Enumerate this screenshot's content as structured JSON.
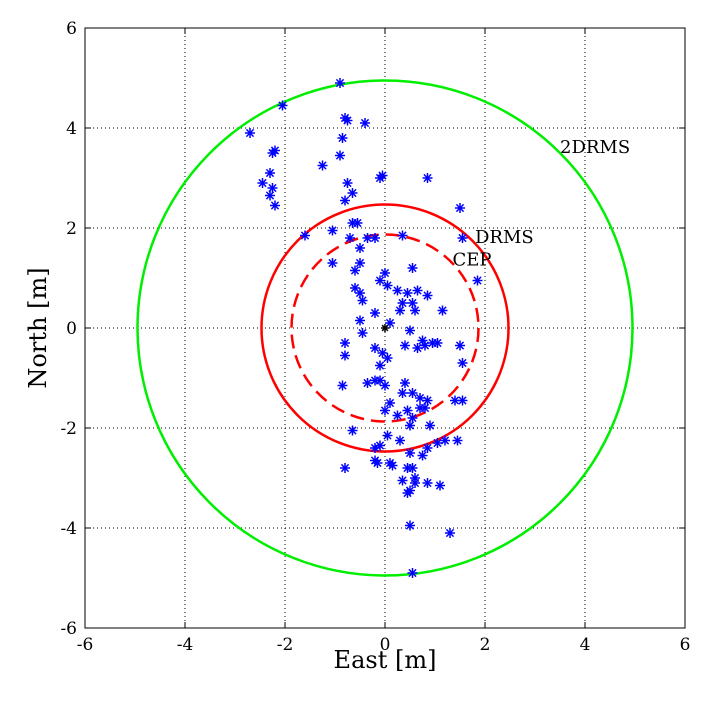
{
  "chart_data": {
    "type": "scatter",
    "title": "",
    "xlabel": "East [m]",
    "ylabel": "North [m]",
    "xlim": [
      -6,
      6
    ],
    "ylim": [
      -6,
      6
    ],
    "xticks": [
      -6,
      -4,
      -2,
      0,
      2,
      4,
      6
    ],
    "yticks": [
      -6,
      -4,
      -2,
      0,
      2,
      4,
      6
    ],
    "grid": true,
    "colors": {
      "points": "#0000ff",
      "drms": "#ff0000",
      "cep": "#ff0000",
      "twodrms": "#00ee00",
      "center": "#000000"
    },
    "circles": [
      {
        "name": "2DRMS",
        "radius": 4.95,
        "style": "solid",
        "color": "#00ee00"
      },
      {
        "name": "DRMS",
        "radius": 2.47,
        "style": "solid",
        "color": "#ff0000"
      },
      {
        "name": "CEP",
        "radius": 1.87,
        "style": "dashed",
        "color": "#ff0000"
      }
    ],
    "annotations": [
      {
        "text": "2DRMS",
        "x": 3.5,
        "y": 3.5
      },
      {
        "text": "DRMS",
        "x": 1.8,
        "y": 1.7
      },
      {
        "text": "CEP",
        "x": 1.35,
        "y": 1.25
      }
    ],
    "center": {
      "x": 0,
      "y": 0
    },
    "points": [
      [
        -0.9,
        4.9
      ],
      [
        -2.05,
        4.45
      ],
      [
        -2.7,
        3.9
      ],
      [
        -0.8,
        4.2
      ],
      [
        -0.75,
        4.15
      ],
      [
        -0.4,
        4.1
      ],
      [
        -0.85,
        3.8
      ],
      [
        -1.25,
        3.25
      ],
      [
        -0.9,
        3.45
      ],
      [
        -2.25,
        3.5
      ],
      [
        -2.2,
        3.55
      ],
      [
        -2.3,
        3.1
      ],
      [
        -2.45,
        2.9
      ],
      [
        -2.25,
        2.8
      ],
      [
        -2.3,
        2.65
      ],
      [
        -2.2,
        2.45
      ],
      [
        -0.75,
        2.9
      ],
      [
        -0.8,
        2.55
      ],
      [
        -0.1,
        3.0
      ],
      [
        -0.05,
        3.05
      ],
      [
        0.85,
        3.0
      ],
      [
        -0.65,
        2.7
      ],
      [
        -1.6,
        1.85
      ],
      [
        -1.05,
        1.95
      ],
      [
        -0.65,
        2.1
      ],
      [
        -0.55,
        2.1
      ],
      [
        -0.7,
        1.8
      ],
      [
        -0.35,
        1.8
      ],
      [
        -0.2,
        1.8
      ],
      [
        0.35,
        1.85
      ],
      [
        1.5,
        2.4
      ],
      [
        1.55,
        1.8
      ],
      [
        1.85,
        0.95
      ],
      [
        -1.05,
        1.3
      ],
      [
        -0.5,
        1.6
      ],
      [
        -0.6,
        1.15
      ],
      [
        -0.5,
        1.3
      ],
      [
        0.0,
        1.1
      ],
      [
        -0.1,
        0.95
      ],
      [
        0.55,
        1.2
      ],
      [
        0.05,
        0.85
      ],
      [
        -0.6,
        0.8
      ],
      [
        -0.5,
        0.7
      ],
      [
        -0.45,
        0.55
      ],
      [
        0.25,
        0.75
      ],
      [
        0.45,
        0.7
      ],
      [
        0.65,
        0.75
      ],
      [
        0.85,
        0.65
      ],
      [
        0.35,
        0.5
      ],
      [
        0.55,
        0.5
      ],
      [
        -0.2,
        0.3
      ],
      [
        0.3,
        0.35
      ],
      [
        0.6,
        0.35
      ],
      [
        1.15,
        0.35
      ],
      [
        -0.5,
        0.15
      ],
      [
        -0.45,
        -0.1
      ],
      [
        0.1,
        0.1
      ],
      [
        0.5,
        -0.05
      ],
      [
        -0.8,
        -0.3
      ],
      [
        -0.2,
        -0.4
      ],
      [
        0.4,
        -0.35
      ],
      [
        0.75,
        -0.25
      ],
      [
        0.8,
        -0.35
      ],
      [
        0.95,
        -0.3
      ],
      [
        1.05,
        -0.3
      ],
      [
        1.5,
        -0.35
      ],
      [
        -0.8,
        -0.55
      ],
      [
        -0.05,
        -0.5
      ],
      [
        0.05,
        -0.6
      ],
      [
        0.65,
        -0.4
      ],
      [
        1.55,
        -0.7
      ],
      [
        -0.1,
        -0.75
      ],
      [
        -0.85,
        -1.15
      ],
      [
        -0.2,
        -1.05
      ],
      [
        -0.1,
        -1.05
      ],
      [
        0.4,
        -1.1
      ],
      [
        0.0,
        -1.15
      ],
      [
        -0.35,
        -1.1
      ],
      [
        0.35,
        -1.3
      ],
      [
        0.55,
        -1.3
      ],
      [
        0.7,
        -1.4
      ],
      [
        0.85,
        -1.45
      ],
      [
        1.4,
        -1.45
      ],
      [
        1.55,
        -1.45
      ],
      [
        0.1,
        -1.5
      ],
      [
        0.0,
        -1.65
      ],
      [
        0.7,
        -1.6
      ],
      [
        0.45,
        -1.65
      ],
      [
        0.25,
        -1.75
      ],
      [
        0.8,
        -1.6
      ],
      [
        0.9,
        -1.95
      ],
      [
        0.5,
        -1.95
      ],
      [
        0.55,
        -1.8
      ],
      [
        1.2,
        -2.25
      ],
      [
        1.45,
        -2.25
      ],
      [
        1.05,
        -2.3
      ],
      [
        -0.65,
        -2.05
      ],
      [
        0.05,
        -2.15
      ],
      [
        0.3,
        -2.25
      ],
      [
        0.85,
        -2.4
      ],
      [
        0.5,
        -2.5
      ],
      [
        0.75,
        -2.55
      ],
      [
        -0.1,
        -2.35
      ],
      [
        -0.2,
        -2.4
      ],
      [
        0.1,
        -2.7
      ],
      [
        -0.15,
        -2.7
      ],
      [
        -0.2,
        -2.65
      ],
      [
        0.15,
        -2.75
      ],
      [
        -0.8,
        -2.8
      ],
      [
        0.45,
        -2.8
      ],
      [
        0.55,
        -2.8
      ],
      [
        0.6,
        -3.0
      ],
      [
        0.35,
        -3.05
      ],
      [
        0.6,
        -3.1
      ],
      [
        0.85,
        -3.1
      ],
      [
        1.1,
        -3.15
      ],
      [
        0.45,
        -3.3
      ],
      [
        0.5,
        -3.25
      ],
      [
        0.5,
        -3.95
      ],
      [
        1.3,
        -4.1
      ],
      [
        0.55,
        -4.9
      ]
    ]
  }
}
